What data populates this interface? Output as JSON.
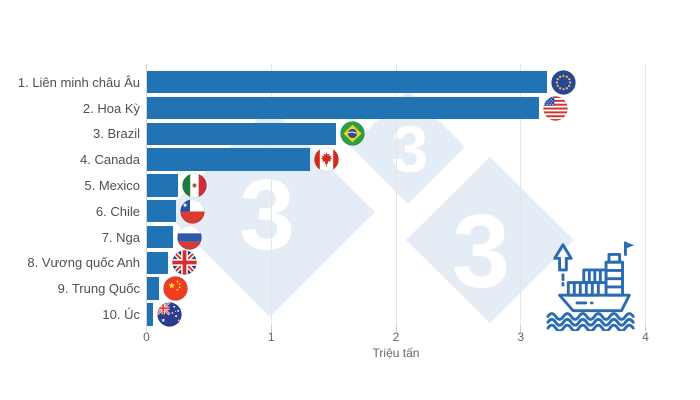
{
  "chart_data": {
    "type": "bar",
    "orientation": "horizontal",
    "title": "",
    "categories": [
      "1. Liên minh châu Âu",
      "2. Hoa Kỳ",
      "3. Brazil",
      "4. Canada",
      "5. Mexico",
      "6. Chile",
      "7. Nga",
      "8. Vương quốc Anh",
      "9. Trung Quốc",
      "10. Úc"
    ],
    "values": [
      3.21,
      3.15,
      1.52,
      1.31,
      0.25,
      0.24,
      0.21,
      0.17,
      0.1,
      0.05
    ],
    "flags": [
      "eu",
      "us",
      "brazil",
      "canada",
      "mexico",
      "chile",
      "russia",
      "uk",
      "china",
      "australia"
    ],
    "xlabel": "Triệu tấn",
    "x_ticks": [
      "0",
      "1",
      "2",
      "3",
      "4"
    ],
    "xlim": [
      0,
      4
    ],
    "grid": true,
    "legend": "none",
    "bar_color": "#2173b4"
  },
  "watermark": {
    "glyph": "3",
    "fill": "#e4ecf6",
    "glyph_color": "#ffffff"
  },
  "ship_icon": {
    "name": "cargo-ship-export-icon",
    "color": "#2b6cb0"
  },
  "axis": {
    "grid_color": "#e5e5e5",
    "tick_color": "#c9c9c9",
    "label_color": "#666666",
    "category_color": "#4f4f4f"
  }
}
